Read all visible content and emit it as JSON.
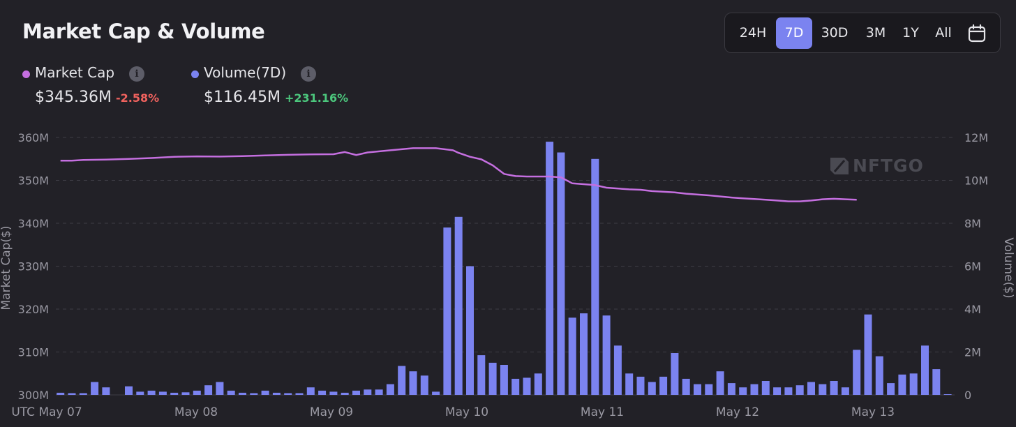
{
  "header": {
    "title": "Market Cap & Volume"
  },
  "range_selector": {
    "options": [
      "24H",
      "7D",
      "30D",
      "3M",
      "1Y",
      "All"
    ],
    "active": "7D",
    "calendar_icon": "calendar-icon"
  },
  "legend": {
    "market_cap": {
      "label": "Market Cap",
      "value": "$345.36M",
      "change": "-2.58%",
      "color": "#c56fe0",
      "change_color": "#f0625e"
    },
    "volume": {
      "label": "Volume(7D)",
      "value": "$116.45M",
      "change": "+231.16%",
      "color": "#7b83f0",
      "change_color": "#4cc77d"
    }
  },
  "watermark": {
    "text": "NFTGO",
    "icon": "nftgo-logo-icon"
  },
  "chart_data": {
    "type": "bar",
    "left_axis": {
      "label": "Market Cap($)",
      "ticks": [
        "300M",
        "310M",
        "320M",
        "330M",
        "340M",
        "350M",
        "360M"
      ],
      "range": [
        300,
        360
      ]
    },
    "right_axis": {
      "label": "Volume($)",
      "ticks": [
        "0",
        "2M",
        "4M",
        "6M",
        "8M",
        "10M",
        "12M"
      ],
      "range": [
        0,
        12
      ]
    },
    "x_ticks": [
      "UTC May 07",
      "May 08",
      "May 09",
      "May 10",
      "May 11",
      "May 12",
      "May 13"
    ],
    "grid": true,
    "series": [
      {
        "name": "Volume(7D)",
        "type": "bar",
        "axis": "right",
        "unit": "M",
        "values": [
          0.1,
          0.08,
          0.08,
          0.6,
          0.35,
          0,
          0.4,
          0.15,
          0.2,
          0.15,
          0.1,
          0.12,
          0.2,
          0.45,
          0.6,
          0.2,
          0.1,
          0.08,
          0.2,
          0.1,
          0.08,
          0.08,
          0.35,
          0.2,
          0.15,
          0.1,
          0.2,
          0.25,
          0.25,
          0.5,
          1.35,
          1.1,
          0.9,
          0.15,
          7.8,
          8.3,
          6.0,
          1.85,
          1.5,
          1.4,
          0.75,
          0.8,
          1.0,
          11.8,
          11.3,
          3.6,
          3.8,
          11.0,
          3.7,
          2.3,
          1.0,
          0.85,
          0.6,
          0.85,
          1.95,
          0.75,
          0.5,
          0.5,
          1.1,
          0.55,
          0.35,
          0.5,
          0.65,
          0.35,
          0.35,
          0.45,
          0.6,
          0.5,
          0.65,
          0.35,
          2.1,
          3.75,
          1.8,
          0.55,
          0.95,
          1.0,
          2.3,
          1.2,
          0.03
        ],
        "bar_start": 0,
        "bar_step": 1
      },
      {
        "name": "Market Cap",
        "type": "line",
        "axis": "left",
        "unit": "M",
        "points": [
          [
            0,
            354.6
          ],
          [
            2,
            354.6
          ],
          [
            4,
            354.75
          ],
          [
            8,
            354.85
          ],
          [
            12,
            355.0
          ],
          [
            16,
            355.2
          ],
          [
            20,
            355.5
          ],
          [
            24,
            355.6
          ],
          [
            28,
            355.55
          ],
          [
            32,
            355.65
          ],
          [
            36,
            355.8
          ],
          [
            40,
            355.95
          ],
          [
            44,
            356.05
          ],
          [
            48,
            356.1
          ],
          [
            50,
            356.6
          ],
          [
            52,
            355.9
          ],
          [
            54,
            356.5
          ],
          [
            58,
            357.0
          ],
          [
            62,
            357.5
          ],
          [
            66,
            357.5
          ],
          [
            69,
            357.0
          ],
          [
            70,
            356.4
          ],
          [
            72,
            355.5
          ],
          [
            74,
            354.9
          ],
          [
            76,
            353.5
          ],
          [
            78,
            351.5
          ],
          [
            80,
            351.0
          ],
          [
            82,
            350.9
          ],
          [
            86,
            350.9
          ],
          [
            88,
            350.7
          ],
          [
            90,
            349.3
          ],
          [
            94,
            348.9
          ],
          [
            96,
            348.3
          ],
          [
            100,
            347.9
          ],
          [
            102,
            347.8
          ],
          [
            104,
            347.5
          ],
          [
            108,
            347.2
          ],
          [
            110,
            346.9
          ],
          [
            114,
            346.5
          ],
          [
            118,
            346.0
          ],
          [
            120,
            345.8
          ],
          [
            124,
            345.5
          ],
          [
            126,
            345.3
          ],
          [
            128,
            345.1
          ],
          [
            130,
            345.1
          ],
          [
            132,
            345.3
          ],
          [
            134,
            345.6
          ],
          [
            136,
            345.7
          ],
          [
            138,
            345.6
          ],
          [
            140,
            345.5
          ]
        ],
        "x_span": [
          0,
          140
        ]
      }
    ]
  }
}
